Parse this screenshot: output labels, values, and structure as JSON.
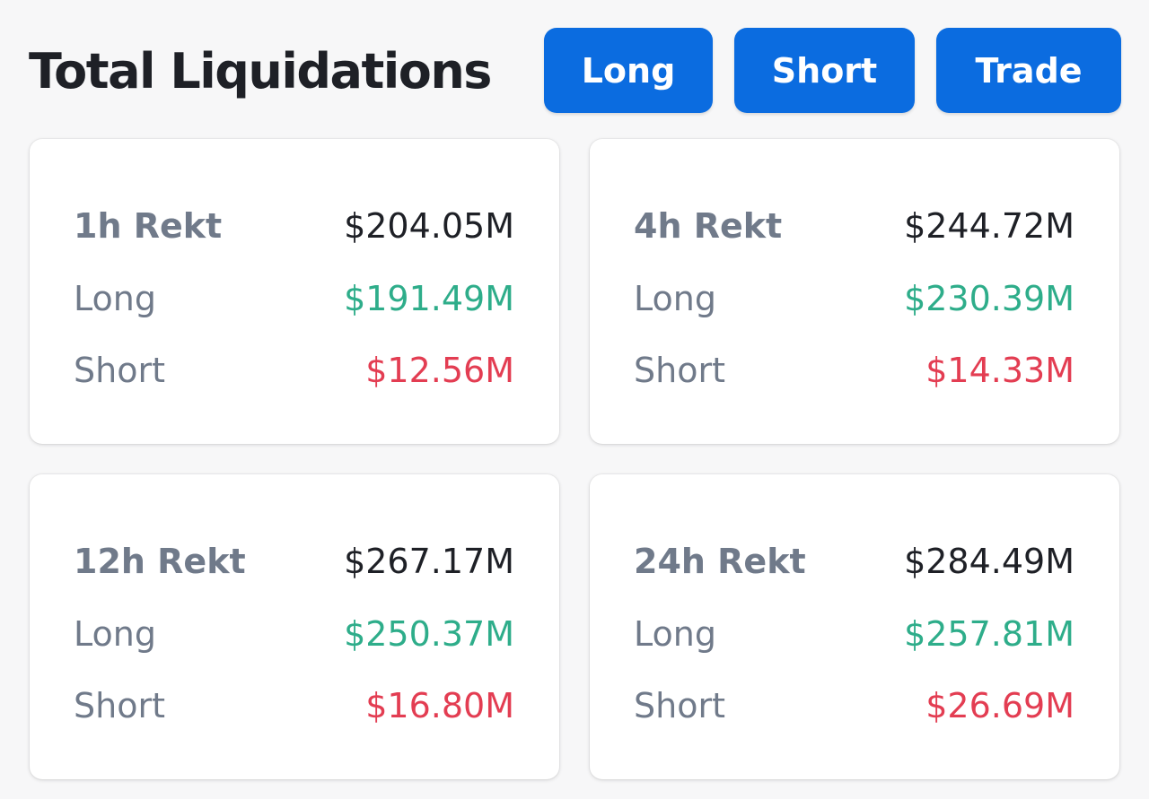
{
  "header": {
    "title": "Total Liquidations",
    "buttons": {
      "long": "Long",
      "short": "Short",
      "trade": "Trade"
    }
  },
  "colors": {
    "accent": "#0b6ce0",
    "long": "#2ead8a",
    "short": "#e33d52",
    "text": "#1e2026",
    "muted": "#707a8a"
  },
  "cards": [
    {
      "period": "1h Rekt",
      "total": "$204.05M",
      "long_label": "Long",
      "long": "$191.49M",
      "short_label": "Short",
      "short": "$12.56M"
    },
    {
      "period": "4h Rekt",
      "total": "$244.72M",
      "long_label": "Long",
      "long": "$230.39M",
      "short_label": "Short",
      "short": "$14.33M"
    },
    {
      "period": "12h Rekt",
      "total": "$267.17M",
      "long_label": "Long",
      "long": "$250.37M",
      "short_label": "Short",
      "short": "$16.80M"
    },
    {
      "period": "24h Rekt",
      "total": "$284.49M",
      "long_label": "Long",
      "long": "$257.81M",
      "short_label": "Short",
      "short": "$26.69M"
    }
  ]
}
